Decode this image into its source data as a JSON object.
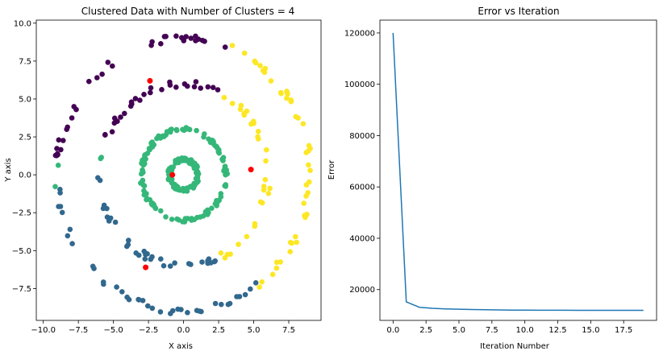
{
  "chart_data": [
    {
      "type": "scatter",
      "title": "Clustered Data with Number of Clusters = 4",
      "xlabel": "X axis",
      "ylabel": "Y axis",
      "xlim": [
        -10.5,
        9.8
      ],
      "ylim": [
        -9.6,
        10.2
      ],
      "xticks": [
        -10.0,
        -7.5,
        -5.0,
        -2.5,
        0.0,
        2.5,
        5.0,
        7.5
      ],
      "yticks": [
        -7.5,
        -5.0,
        -2.5,
        0.0,
        2.5,
        5.0,
        7.5,
        10.0
      ],
      "tick_labels_x": [
        "−10.0",
        "−7.5",
        "−5.0",
        "−2.5",
        "0.0",
        "2.5",
        "5.0",
        "7.5"
      ],
      "tick_labels_y": [
        "−7.5",
        "−5.0",
        "−2.5",
        "0.0",
        "2.5",
        "5.0",
        "7.5",
        "10.0"
      ],
      "grid": false,
      "colors": {
        "cluster_purple": "#440154",
        "cluster_blue": "#31688e",
        "cluster_green": "#35b779",
        "cluster_yellow": "#fde725",
        "centroid": "#ff0000"
      },
      "rings": [
        {
          "radius": 1.0,
          "center": [
            0.0,
            0.0
          ]
        },
        {
          "radius": 3.0,
          "center": [
            0.0,
            0.0
          ]
        },
        {
          "radius": 6.0,
          "center": [
            0.0,
            0.0
          ]
        },
        {
          "radius": 9.0,
          "center": [
            0.0,
            0.0
          ]
        }
      ],
      "centroids": [
        {
          "x": -2.4,
          "y": 6.2
        },
        {
          "x": -0.8,
          "y": 0.0
        },
        {
          "x": 4.8,
          "y": 0.35
        },
        {
          "x": -2.7,
          "y": -6.1
        }
      ]
    },
    {
      "type": "line",
      "title": "Error vs Iteration",
      "xlabel": "Iteration Number",
      "ylabel": "Error",
      "xlim": [
        -1.0,
        20.0
      ],
      "ylim": [
        8000,
        125000
      ],
      "xticks": [
        0.0,
        2.5,
        5.0,
        7.5,
        10.0,
        12.5,
        15.0,
        17.5
      ],
      "yticks": [
        20000,
        40000,
        60000,
        80000,
        100000,
        120000
      ],
      "tick_labels_x": [
        "0.0",
        "2.5",
        "5.0",
        "7.5",
        "10.0",
        "12.5",
        "15.0",
        "17.5"
      ],
      "tick_labels_y": [
        "20000",
        "40000",
        "60000",
        "80000",
        "100000",
        "120000"
      ],
      "grid": false,
      "line_color": "#1f77b4",
      "x": [
        0,
        1,
        2,
        3,
        4,
        5,
        6,
        7,
        8,
        9,
        10,
        11,
        12,
        13,
        14,
        15,
        16,
        17,
        18,
        19
      ],
      "y": [
        120000,
        15200,
        13100,
        12700,
        12500,
        12350,
        12250,
        12150,
        12080,
        12020,
        11980,
        11960,
        11950,
        11940,
        11935,
        11930,
        11928,
        11926,
        11925,
        11924
      ]
    }
  ]
}
